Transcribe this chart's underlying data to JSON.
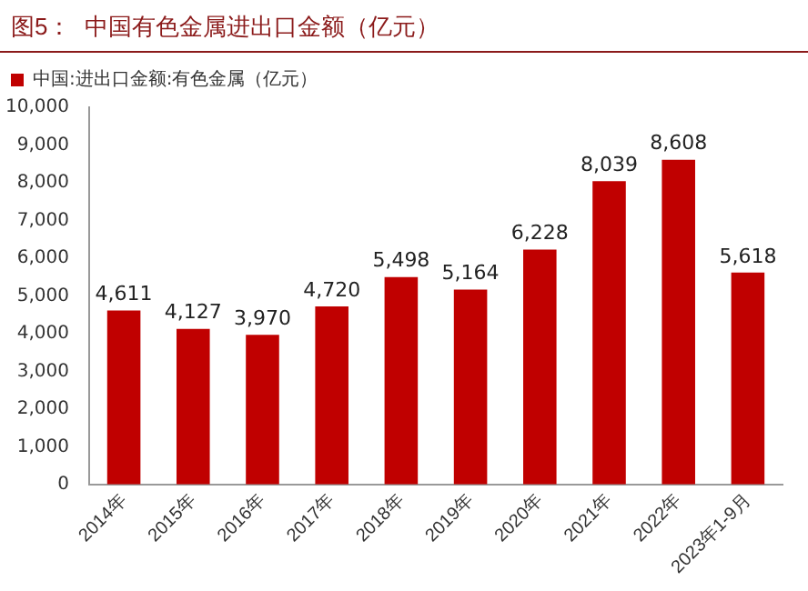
{
  "chart_data": {
    "type": "bar",
    "title": "图5：  中国有色金属进出口金额（亿元）",
    "categories": [
      "2014年",
      "2015年",
      "2016年",
      "2017年",
      "2018年",
      "2019年",
      "2020年",
      "2021年",
      "2022年",
      "2023年1-9月"
    ],
    "series": [
      {
        "name": "中国:进出口金额:有色金属（亿元）",
        "color": "#c00000",
        "values": [
          4611,
          4127,
          3970,
          4720,
          5498,
          5164,
          6228,
          8039,
          8608,
          5618
        ],
        "value_labels": [
          "4,611",
          "4,127",
          "3,970",
          "4,720",
          "5,498",
          "5,164",
          "6,228",
          "8,039",
          "8,608",
          "5,618"
        ]
      }
    ],
    "ylim": [
      0,
      10000
    ],
    "yticks": [
      {
        "value": 0,
        "label": "0"
      },
      {
        "value": 1000,
        "label": "1,000"
      },
      {
        "value": 2000,
        "label": "2,000"
      },
      {
        "value": 3000,
        "label": "3,000"
      },
      {
        "value": 4000,
        "label": "4,000"
      },
      {
        "value": 5000,
        "label": "5,000"
      },
      {
        "value": 6000,
        "label": "6,000"
      },
      {
        "value": 7000,
        "label": "7,000"
      },
      {
        "value": 8000,
        "label": "8,000"
      },
      {
        "value": 9000,
        "label": "9,000"
      },
      {
        "value": 10000,
        "label": "10,000"
      }
    ],
    "legend": "top left",
    "grid": false
  }
}
